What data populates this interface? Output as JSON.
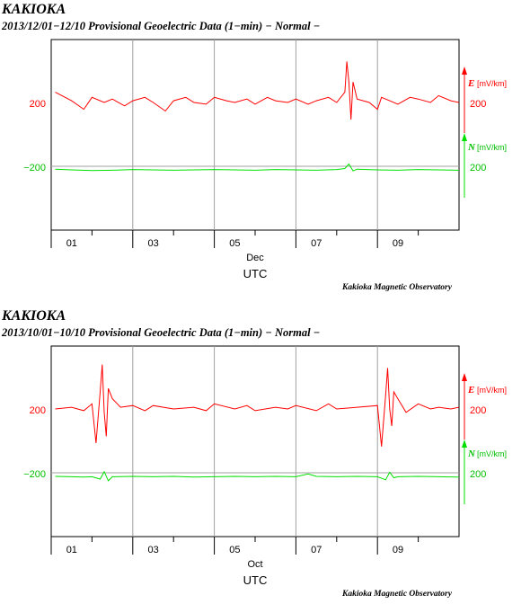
{
  "colors": {
    "E": "#ff0000",
    "N": "#00e000",
    "axis": "#000000",
    "grid": "#a0a0a0"
  },
  "charts": [
    {
      "station": "KAKIOKA",
      "title": "2013/12/01−12/10  Provisional Geoelectric Data (1−min)  − Normal −",
      "month_label": "Dec",
      "xlabel": "UTC",
      "credit": "Kakioka Magnetic Observatory",
      "left_ticks": [
        "200",
        "−200"
      ],
      "right_labels": {
        "E_letter": "E",
        "E_unit": "[mV/km]",
        "E_value": "200",
        "N_letter": "N",
        "N_unit": "[mV/km]",
        "N_value": "200"
      }
    },
    {
      "station": "KAKIOKA",
      "title": "2013/10/01−10/10  Provisional Geoelectric Data (1−min)  − Normal −",
      "month_label": "Oct",
      "xlabel": "UTC",
      "credit": "Kakioka Magnetic Observatory",
      "left_ticks": [
        "200",
        "−200"
      ],
      "right_labels": {
        "E_letter": "E",
        "E_unit": "[mV/km]",
        "E_value": "200",
        "N_letter": "N",
        "N_unit": "[mV/km]",
        "N_value": "200"
      }
    }
  ],
  "chart_data": [
    {
      "type": "line",
      "title": "2013/12/01−12/10  Provisional Geoelectric Data (1−min)  − Normal −",
      "xlabel": "UTC",
      "x_tick_labels": [
        "01",
        "03",
        "05",
        "07",
        "09"
      ],
      "x_range_days": [
        0.5,
        10.5
      ],
      "grid": true,
      "series": [
        {
          "name": "E",
          "unit": "[mV/km]",
          "x": [
            0.6,
            1.0,
            1.3,
            1.5,
            1.8,
            2.0,
            2.3,
            2.5,
            2.8,
            3.0,
            3.3,
            3.5,
            3.8,
            4.0,
            4.3,
            4.5,
            4.8,
            5.0,
            5.3,
            5.5,
            5.8,
            6.0,
            6.3,
            6.5,
            6.8,
            7.0,
            7.3,
            7.5,
            7.6,
            7.7,
            7.75,
            7.8,
            7.85,
            7.9,
            8.0,
            8.3,
            8.5,
            8.6,
            8.8,
            9.0,
            9.3,
            9.5,
            9.8,
            10.0,
            10.3,
            10.5
          ],
          "y": [
            230,
            205,
            180,
            215,
            200,
            210,
            190,
            205,
            215,
            200,
            175,
            205,
            215,
            200,
            195,
            215,
            205,
            200,
            210,
            195,
            215,
            205,
            200,
            210,
            195,
            205,
            215,
            200,
            215,
            230,
            320,
            260,
            150,
            260,
            210,
            200,
            180,
            215,
            205,
            195,
            215,
            210,
            200,
            220,
            205,
            200
          ]
        },
        {
          "name": "N",
          "unit": "[mV/km]",
          "x": [
            0.6,
            1.0,
            1.5,
            2.0,
            2.5,
            3.0,
            3.5,
            4.0,
            4.5,
            5.0,
            5.5,
            6.0,
            6.5,
            7.0,
            7.5,
            7.7,
            7.8,
            7.9,
            8.0,
            8.5,
            9.0,
            9.5,
            10.0,
            10.5
          ],
          "y": [
            -210,
            -212,
            -214,
            -213,
            -211,
            -212,
            -213,
            -212,
            -211,
            -212,
            -213,
            -211,
            -212,
            -213,
            -211,
            -208,
            -195,
            -215,
            -210,
            -212,
            -213,
            -211,
            -212,
            -213
          ]
        }
      ]
    },
    {
      "type": "line",
      "title": "2013/10/01−10/10  Provisional Geoelectric Data (1−min)  − Normal −",
      "xlabel": "UTC",
      "x_tick_labels": [
        "01",
        "03",
        "05",
        "07",
        "09"
      ],
      "x_range_days": [
        0.5,
        10.5
      ],
      "grid": true,
      "series": [
        {
          "name": "E",
          "unit": "[mV/km]",
          "x": [
            0.6,
            1.0,
            1.3,
            1.5,
            1.6,
            1.7,
            1.75,
            1.8,
            1.85,
            1.9,
            2.0,
            2.2,
            2.5,
            2.8,
            3.0,
            3.5,
            4.0,
            4.3,
            4.5,
            5.0,
            5.3,
            5.5,
            6.0,
            6.3,
            6.5,
            7.0,
            7.3,
            7.5,
            8.0,
            8.5,
            8.6,
            8.7,
            8.75,
            8.8,
            8.85,
            8.9,
            9.0,
            9.2,
            9.5,
            9.8,
            10.0,
            10.3,
            10.5
          ],
          "y": [
            200,
            205,
            195,
            215,
            100,
            250,
            330,
            190,
            120,
            260,
            230,
            205,
            210,
            195,
            210,
            200,
            205,
            195,
            215,
            200,
            210,
            195,
            205,
            200,
            210,
            195,
            215,
            200,
            205,
            210,
            90,
            240,
            320,
            200,
            150,
            250,
            230,
            190,
            215,
            200,
            205,
            200,
            205
          ]
        },
        {
          "name": "N",
          "unit": "[mV/km]",
          "x": [
            0.6,
            1.0,
            1.3,
            1.5,
            1.7,
            1.8,
            1.9,
            2.0,
            2.5,
            3.0,
            3.5,
            4.0,
            4.5,
            5.0,
            5.5,
            6.0,
            6.5,
            6.8,
            7.0,
            7.5,
            8.0,
            8.5,
            8.7,
            8.8,
            8.9,
            9.0,
            9.5,
            10.0,
            10.5
          ],
          "y": [
            -212,
            -213,
            -214,
            -213,
            -220,
            -198,
            -225,
            -213,
            -212,
            -213,
            -212,
            -214,
            -213,
            -212,
            -213,
            -212,
            -213,
            -205,
            -212,
            -213,
            -212,
            -213,
            -222,
            -200,
            -216,
            -213,
            -212,
            -213,
            -214
          ]
        }
      ]
    }
  ]
}
